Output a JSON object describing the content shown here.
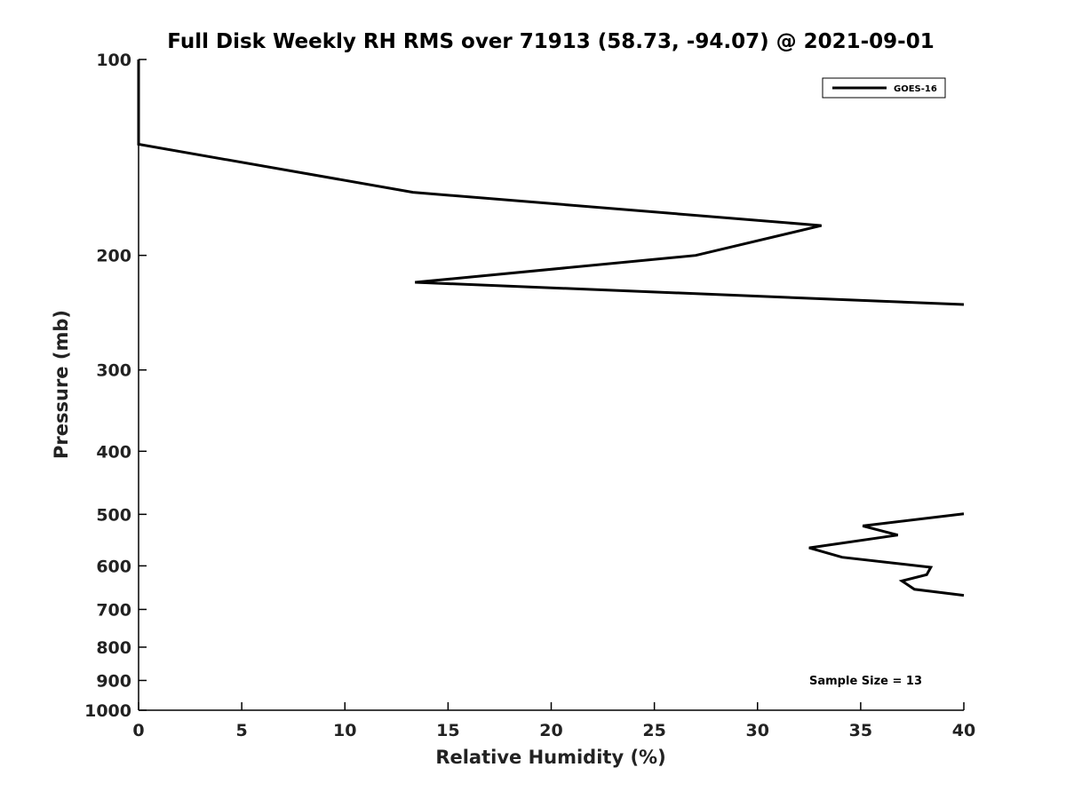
{
  "chart_data": {
    "type": "line",
    "title": "Full Disk Weekly RH RMS over 71913 (58.73, -94.07) @ 2021-09-01",
    "xlabel": "Relative Humidity (%)",
    "ylabel": "Pressure (mb)",
    "xlim": [
      0,
      40
    ],
    "ylim": [
      1000,
      100
    ],
    "yscale": "log",
    "xticks": [
      0,
      5,
      10,
      15,
      20,
      25,
      30,
      35,
      40
    ],
    "xtick_labels": [
      "0",
      "5",
      "10",
      "15",
      "20",
      "25",
      "30",
      "35",
      "40"
    ],
    "yticks": [
      100,
      200,
      300,
      400,
      500,
      600,
      700,
      800,
      900,
      1000
    ],
    "ytick_labels": [
      "100",
      "200",
      "300",
      "400",
      "500",
      "600",
      "700",
      "800",
      "900",
      "1000"
    ],
    "grid": false,
    "legend_position": "top-right",
    "annotation": "Sample Size = 13",
    "series": [
      {
        "name": "GOES-16",
        "color": "#000000",
        "segments": [
          [
            [
              0,
              100
            ],
            [
              0,
              125
            ],
            [
              0,
              135
            ],
            [
              13.3,
              160
            ],
            [
              33.1,
              180
            ],
            [
              27.0,
              200
            ],
            [
              13.4,
              220
            ],
            [
              40.0,
              238
            ]
          ],
          [
            [
              40.0,
              499
            ],
            [
              35.1,
              521
            ],
            [
              36.8,
              538
            ],
            [
              32.5,
              563
            ],
            [
              34.1,
              582
            ],
            [
              38.4,
              603
            ],
            [
              38.2,
              619
            ],
            [
              37.0,
              633
            ],
            [
              37.6,
              652
            ],
            [
              40.0,
              666
            ]
          ]
        ]
      }
    ]
  }
}
